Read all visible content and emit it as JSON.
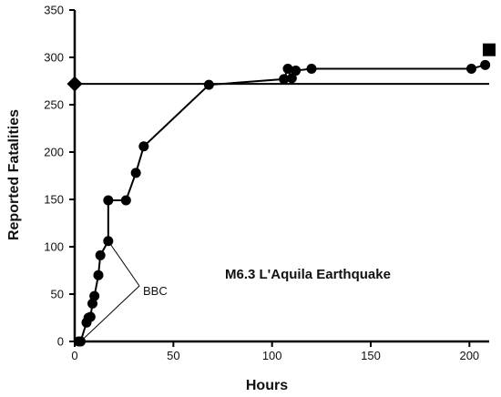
{
  "chart_data": {
    "type": "scatter",
    "xlabel": "Hours",
    "ylabel": "Reported Fatalities",
    "xlim": [
      0,
      210
    ],
    "ylim": [
      0,
      350
    ],
    "x_ticks": [
      0,
      50,
      100,
      150,
      200
    ],
    "y_ticks": [
      0,
      50,
      100,
      150,
      200,
      250,
      300,
      350
    ],
    "grid": false,
    "colors": {
      "series": "#000000",
      "axis": "#000000",
      "background": "#ffffff"
    },
    "series": [
      {
        "marker": "circle",
        "line": true,
        "points": [
          {
            "x": 2,
            "y": 0
          },
          {
            "x": 3,
            "y": 0
          },
          {
            "x": 6,
            "y": 20
          },
          {
            "x": 7,
            "y": 25
          },
          {
            "x": 8,
            "y": 26
          },
          {
            "x": 9,
            "y": 40
          },
          {
            "x": 10,
            "y": 48
          },
          {
            "x": 12,
            "y": 70
          },
          {
            "x": 13,
            "y": 91
          },
          {
            "x": 17,
            "y": 106
          },
          {
            "x": 17,
            "y": 149
          },
          {
            "x": 26,
            "y": 149
          },
          {
            "x": 31,
            "y": 178
          },
          {
            "x": 35,
            "y": 206
          },
          {
            "x": 68,
            "y": 271
          },
          {
            "x": 106,
            "y": 277
          },
          {
            "x": 108,
            "y": 288
          },
          {
            "x": 110,
            "y": 278
          },
          {
            "x": 112,
            "y": 286
          },
          {
            "x": 120,
            "y": 288
          },
          {
            "x": 201,
            "y": 288
          },
          {
            "x": 208,
            "y": 292
          }
        ]
      }
    ],
    "reference_line": {
      "y": 272,
      "x_start": 0,
      "x_end": 210,
      "marker_start": "diamond"
    },
    "extra_marker": {
      "shape": "square",
      "x": 210,
      "y": 308
    },
    "annotations": [
      {
        "text": "M6.3 L'Aquila Earthquake"
      },
      {
        "text": "BBC",
        "arrows_to": [
          {
            "x": 17,
            "y": 106
          },
          {
            "x": 3,
            "y": 0
          }
        ]
      }
    ]
  }
}
